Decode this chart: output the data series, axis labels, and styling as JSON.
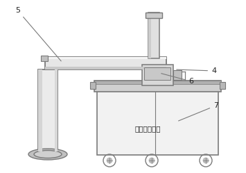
{
  "background_color": "#ffffff",
  "line_color": "#7a7a7a",
  "light_gray": "#e8e8e8",
  "mid_gray": "#c8c8c8",
  "dark_gray": "#aaaaaa",
  "label_color": "#222222",
  "text_chinese": "腐蘊检测中心",
  "figsize": [
    3.55,
    2.49
  ],
  "dpi": 100
}
